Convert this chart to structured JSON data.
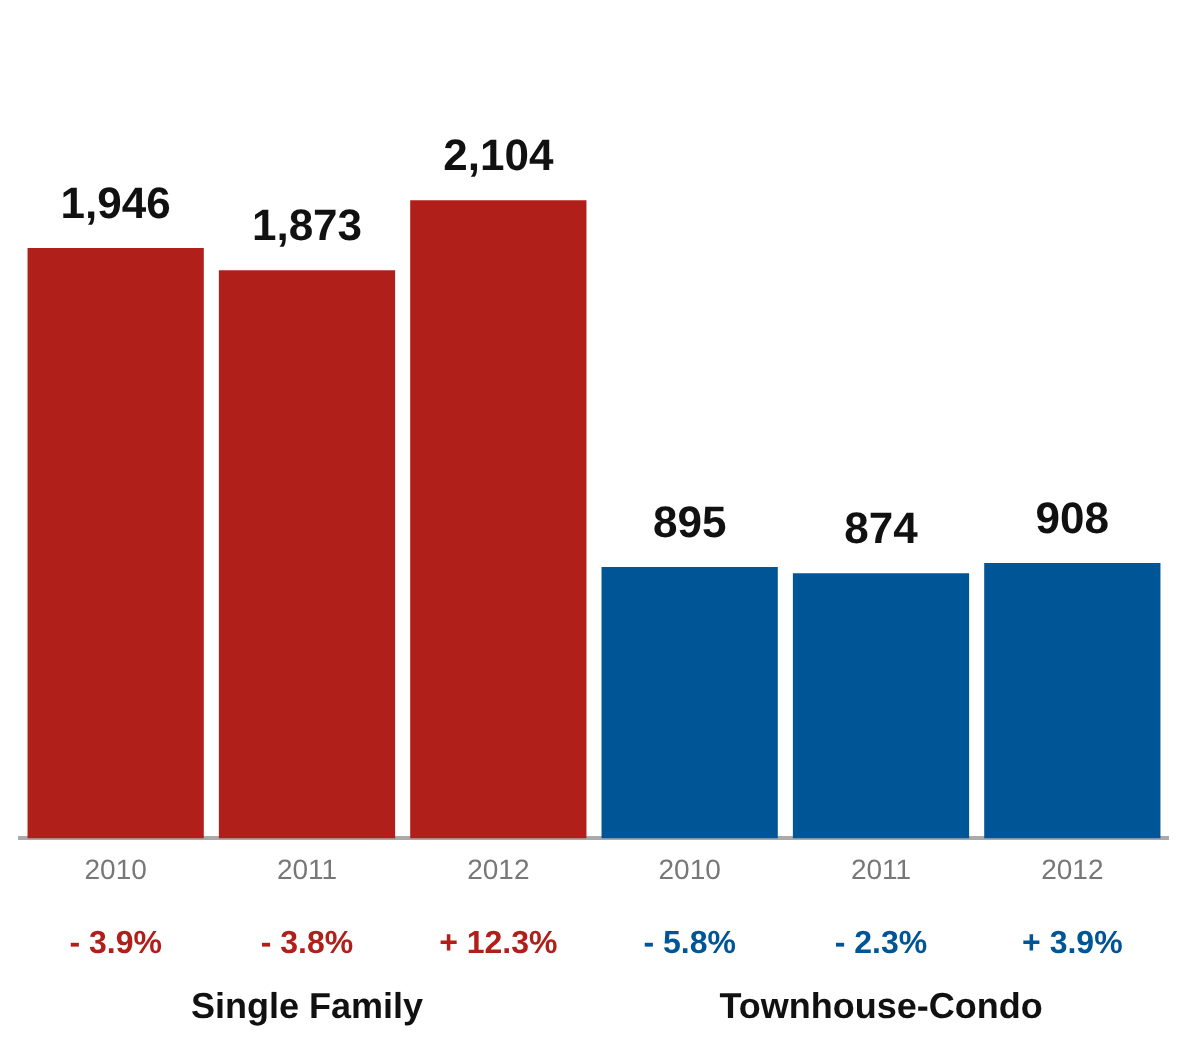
{
  "chart_data": {
    "type": "bar",
    "categories": [
      "2010",
      "2011",
      "2012",
      "2010",
      "2011",
      "2012"
    ],
    "values": [
      1946,
      1873,
      2104,
      895,
      874,
      908
    ],
    "colors": [
      "#b01f1a",
      "#b01f1a",
      "#b01f1a",
      "#005596",
      "#005596",
      "#005596"
    ],
    "value_labels": [
      "1,946",
      "1,873",
      "2,104",
      "895",
      "874",
      "908"
    ],
    "grid": false,
    "legend": false,
    "tick_labels": "x",
    "annotations": [
      "- 3.9%",
      "- 3.8%",
      "+ 12.3%",
      "- 5.8%",
      "- 2.3%",
      "+ 3.9%",
      "Single Family",
      "Townhouse-Condo"
    ]
  }
}
